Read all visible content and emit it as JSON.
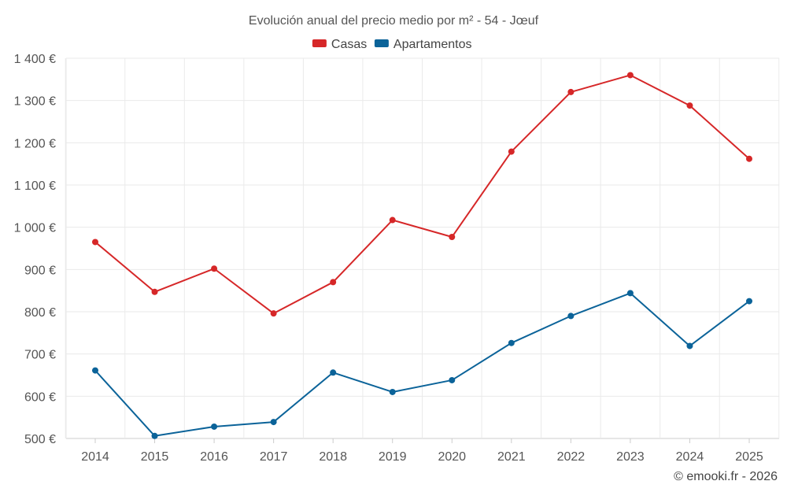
{
  "chart_data": {
    "type": "line",
    "title": "Evolución anual del precio medio por m² - 54 - Jœuf",
    "categories": [
      "2014",
      "2015",
      "2016",
      "2017",
      "2018",
      "2019",
      "2020",
      "2021",
      "2022",
      "2023",
      "2024",
      "2025"
    ],
    "series": [
      {
        "name": "Casas",
        "color": "#d62728",
        "values": [
          965,
          847,
          902,
          796,
          870,
          1017,
          977,
          1179,
          1320,
          1360,
          1288,
          1162
        ]
      },
      {
        "name": "Apartamentos",
        "color": "#0b6399",
        "values": [
          661,
          506,
          528,
          539,
          656,
          610,
          638,
          726,
          790,
          844,
          719,
          825
        ]
      }
    ],
    "ylim": [
      500,
      1400
    ],
    "yticks": [
      500,
      600,
      700,
      800,
      900,
      1000,
      1100,
      1200,
      1300,
      1400
    ],
    "ytick_labels": [
      "500 €",
      "600 €",
      "700 €",
      "800 €",
      "900 €",
      "1 000 €",
      "1 100 €",
      "1 200 €",
      "1 300 €",
      "1 400 €"
    ],
    "xlabel": "",
    "ylabel": "",
    "grid": true,
    "legend_position": "top-center",
    "credit": "© emooki.fr - 2026"
  }
}
